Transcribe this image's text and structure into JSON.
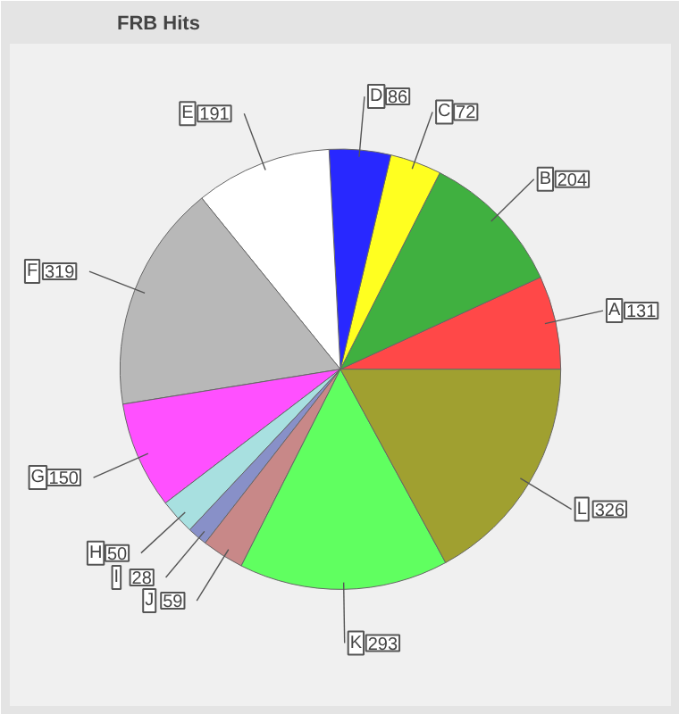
{
  "chart_data": {
    "type": "pie",
    "title": "FRB Hits",
    "categories": [
      "A",
      "B",
      "C",
      "D",
      "E",
      "F",
      "G",
      "H",
      "I",
      "J",
      "K",
      "L"
    ],
    "values": [
      131,
      204,
      72,
      86,
      191,
      319,
      150,
      50,
      28,
      59,
      293,
      326
    ],
    "colors": [
      "#ff4848",
      "#40b040",
      "#ffff20",
      "#2828ff",
      "#ffffff",
      "#b8b8b8",
      "#ff50ff",
      "#a8e0e0",
      "#8890c8",
      "#c88888",
      "#60ff60",
      "#a0a030"
    ],
    "data_labels": true
  }
}
